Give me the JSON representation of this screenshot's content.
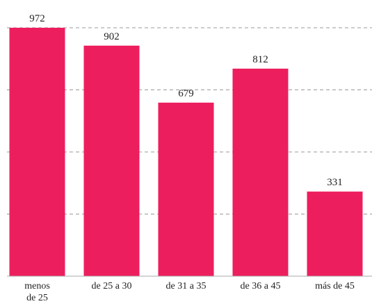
{
  "chart_data": {
    "type": "bar",
    "categories": [
      "menos de 25",
      "de 25 a 30",
      "de 31 a 35",
      "de 36 a 45",
      "más de 45"
    ],
    "values": [
      972,
      902,
      679,
      812,
      331
    ],
    "color": "#ed1e5e",
    "ylim": [
      0,
      972
    ],
    "yticks": [
      243,
      486,
      729,
      972
    ],
    "grid": true
  }
}
